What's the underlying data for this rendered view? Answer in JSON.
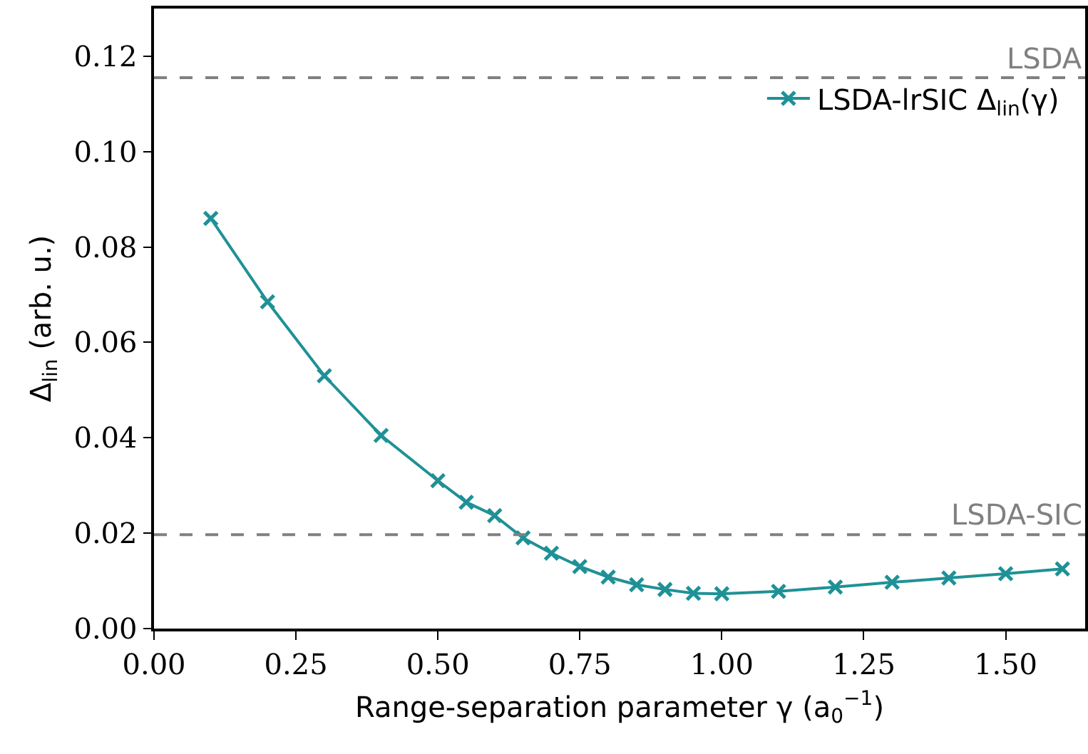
{
  "chart_data": {
    "type": "line",
    "xlabel": "Range-separation parameter γ (a$_{0}$$^{−1}$)",
    "ylabel": "Δ$_{lin}$ (arb. u.)",
    "x": [
      0.1,
      0.2,
      0.3,
      0.4,
      0.5,
      0.55,
      0.6,
      0.65,
      0.7,
      0.75,
      0.8,
      0.85,
      0.9,
      0.95,
      1.0,
      1.1,
      1.2,
      1.3,
      1.4,
      1.5,
      1.6
    ],
    "series": [
      {
        "name": "LSDA-lrSIC Δ$_{lin}$(γ)",
        "color": "#1f9196",
        "values": [
          0.086,
          0.0685,
          0.053,
          0.0405,
          0.031,
          0.0265,
          0.0237,
          0.019,
          0.0158,
          0.013,
          0.0108,
          0.0092,
          0.0082,
          0.0074,
          0.0073,
          0.0078,
          0.0087,
          0.0097,
          0.0106,
          0.0115,
          0.0125
        ]
      }
    ],
    "xlim": [
      0,
      1.64
    ],
    "xticks": [
      {
        "value": 0,
        "label": "0.00"
      },
      {
        "value": 0.25,
        "label": "0.25"
      },
      {
        "value": 0.5,
        "label": "0.50"
      },
      {
        "value": 0.75,
        "label": "0.75"
      },
      {
        "value": 1,
        "label": "1.00"
      },
      {
        "value": 1.25,
        "label": "1.25"
      },
      {
        "value": 1.5,
        "label": "1.50"
      }
    ],
    "ylim": [
      0,
      0.13
    ],
    "yticks": [
      {
        "value": 0,
        "label": "0.00"
      },
      {
        "value": 0.02,
        "label": "0.02"
      },
      {
        "value": 0.04,
        "label": "0.04"
      },
      {
        "value": 0.06,
        "label": "0.06"
      },
      {
        "value": 0.08,
        "label": "0.08"
      },
      {
        "value": 0.1,
        "label": "0.10"
      },
      {
        "value": 0.12,
        "label": "0.12"
      }
    ],
    "ref_lines": [
      {
        "axis": "y",
        "value": 0.1155,
        "label": "LSDA",
        "color": "#808080",
        "line_style": "dashed"
      },
      {
        "axis": "y",
        "value": 0.0197,
        "label": "LSDA-SIC",
        "color": "#808080",
        "line_style": "dashed"
      }
    ],
    "grid": false,
    "legend": "top right",
    "marker": "cross",
    "line_style": "solid"
  }
}
